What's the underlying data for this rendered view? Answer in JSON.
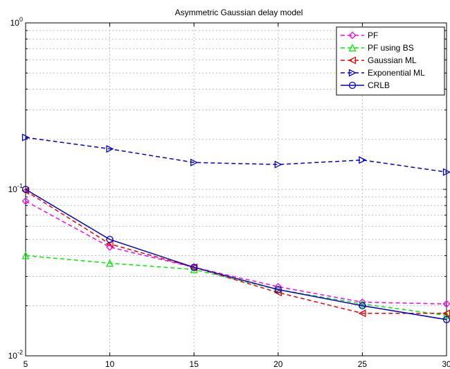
{
  "chart_data": {
    "type": "line",
    "title": "Asymmetric Gaussian delay model",
    "xlabel": "",
    "ylabel": "",
    "x": [
      5,
      10,
      15,
      20,
      25,
      30
    ],
    "xlim": [
      5,
      30
    ],
    "ylim": [
      0.01,
      1
    ],
    "y_scale": "log",
    "x_tick_labels": [
      "5",
      "10",
      "15",
      "20",
      "25",
      "30"
    ],
    "y_tick_labels": [
      {
        "base": "10",
        "exp": "0",
        "value": 1
      },
      {
        "base": "10",
        "exp": "-1",
        "value": 0.1
      },
      {
        "base": "10",
        "exp": "-2",
        "value": 0.01
      }
    ],
    "grid": true,
    "legend_position": "top-right",
    "series": [
      {
        "name": "PF",
        "color": "#ff00ff",
        "line_style": "dashed",
        "marker": "diamond",
        "values": [
          0.085,
          0.045,
          0.034,
          0.026,
          0.021,
          0.0205
        ]
      },
      {
        "name": "PF using BS",
        "color": "#00ee00",
        "line_style": "dashed",
        "marker": "triangle-up",
        "values": [
          0.04,
          0.036,
          0.033,
          0.025,
          0.0205,
          0.0175
        ]
      },
      {
        "name": "Gaussian ML",
        "color": "#ee0000",
        "line_style": "dashed",
        "marker": "triangle-left",
        "values": [
          0.098,
          0.047,
          0.034,
          0.024,
          0.018,
          0.018
        ]
      },
      {
        "name": "Exponential ML",
        "color": "#0000cc",
        "line_style": "dashed",
        "marker": "triangle-right",
        "values": [
          0.205,
          0.175,
          0.145,
          0.141,
          0.15,
          0.127
        ]
      },
      {
        "name": "CRLB",
        "color": "#0000cc",
        "line_style": "solid",
        "marker": "circle",
        "values": [
          0.1,
          0.05,
          0.034,
          0.025,
          0.02,
          0.0165
        ]
      }
    ]
  }
}
